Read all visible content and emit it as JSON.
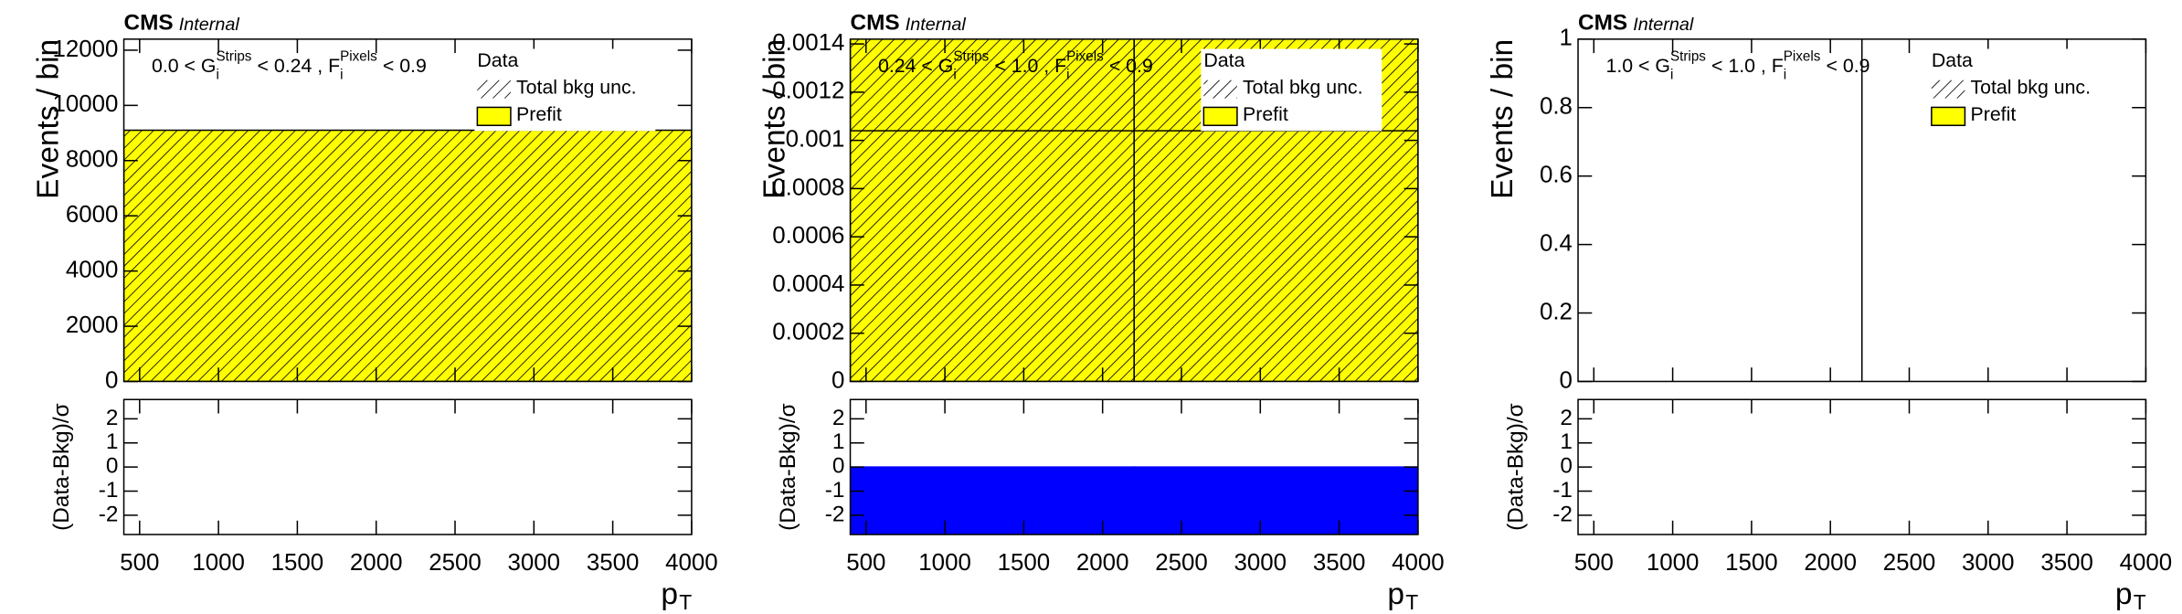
{
  "chart_data": [
    {
      "type": "histogram",
      "cms": "CMS",
      "cms_extra": "Internal",
      "region": [
        "0.0 < G",
        "i",
        "Strips",
        "< 0.24 , F",
        "i",
        "Pixels",
        "< 0.9"
      ],
      "ylabel": "Events / bin",
      "xlabel": "p",
      "xlabel_sub": "T",
      "ratio_ylabel": "(Data-Bkg)/σ",
      "bins": [
        400,
        4000
      ],
      "series": [
        {
          "name": "Data",
          "color": "#000000",
          "style": "line",
          "values": [
            null
          ]
        },
        {
          "name": "Total bkg unc.",
          "color": "#000000",
          "style": "hatch",
          "values": [
            9100
          ]
        },
        {
          "name": "Prefit",
          "color": "#ffff00",
          "style": "fill",
          "values": [
            9100
          ]
        }
      ],
      "xlim": [
        400,
        4000
      ],
      "xticks": [
        500,
        1000,
        1500,
        2000,
        2500,
        3000,
        3500,
        4000
      ],
      "ylim": [
        0,
        12400
      ],
      "yticks": [
        0,
        2000,
        4000,
        6000,
        8000,
        10000,
        12000
      ],
      "ratio": {
        "values": [
          0
        ],
        "color": "#0000ff",
        "ylim": [
          -2.8,
          2.8
        ],
        "yticks": [
          -2,
          -1,
          0,
          1,
          2
        ]
      }
    },
    {
      "type": "histogram",
      "cms": "CMS",
      "cms_extra": "Internal",
      "region": [
        "0.24 < G",
        "i",
        "Strips",
        "< 1.0 , F",
        "i",
        "Pixels",
        "< 0.9"
      ],
      "ylabel": "Events / bin",
      "xlabel": "p",
      "xlabel_sub": "T",
      "ratio_ylabel": "(Data-Bkg)/σ",
      "bins": [
        400,
        2200,
        4000
      ],
      "series": [
        {
          "name": "Data",
          "color": "#000000",
          "style": "line",
          "values": [
            0.00104,
            0.00104
          ]
        },
        {
          "name": "Total bkg unc.",
          "color": "#000000",
          "style": "hatch",
          "values": [
            0.0015,
            0.0015
          ]
        },
        {
          "name": "Prefit",
          "color": "#ffff00",
          "style": "fill",
          "values": [
            0.0015,
            0.0015
          ]
        }
      ],
      "xlim": [
        400,
        4000
      ],
      "xticks": [
        500,
        1000,
        1500,
        2000,
        2500,
        3000,
        3500,
        4000
      ],
      "ylim": [
        0,
        0.00142
      ],
      "yticks": [
        0,
        0.0002,
        0.0004,
        0.0006,
        0.0008,
        0.001,
        0.0012,
        0.0014
      ],
      "ratio": {
        "values": [
          -3,
          -3
        ],
        "color": "#0000ff",
        "ylim": [
          -2.8,
          2.8
        ],
        "yticks": [
          -2,
          -1,
          0,
          1,
          2
        ]
      }
    },
    {
      "type": "histogram",
      "cms": "CMS",
      "cms_extra": "Internal",
      "region": [
        "1.0 < G",
        "i",
        "Strips",
        "< 1.0 , F",
        "i",
        "Pixels",
        "< 0.9"
      ],
      "ylabel": "Events / bin",
      "xlabel": "p",
      "xlabel_sub": "T",
      "ratio_ylabel": "(Data-Bkg)/σ",
      "bins": [
        400,
        2200,
        4000
      ],
      "series": [
        {
          "name": "Data",
          "color": "#000000",
          "style": "line",
          "values": [
            null,
            null
          ]
        },
        {
          "name": "Total bkg unc.",
          "color": "#000000",
          "style": "hatch",
          "values": [
            0,
            0
          ]
        },
        {
          "name": "Prefit",
          "color": "#ffff00",
          "style": "fill",
          "values": [
            0,
            0
          ]
        }
      ],
      "xlim": [
        400,
        4000
      ],
      "xticks": [
        500,
        1000,
        1500,
        2000,
        2500,
        3000,
        3500,
        4000
      ],
      "ylim": [
        0,
        1
      ],
      "yticks": [
        0,
        0.2,
        0.4,
        0.6,
        0.8,
        1
      ],
      "ratio": {
        "values": [
          0,
          0
        ],
        "color": "#555555",
        "ylim": [
          -2.8,
          2.8
        ],
        "yticks": [
          -2,
          -1,
          0,
          1,
          2
        ]
      }
    }
  ]
}
